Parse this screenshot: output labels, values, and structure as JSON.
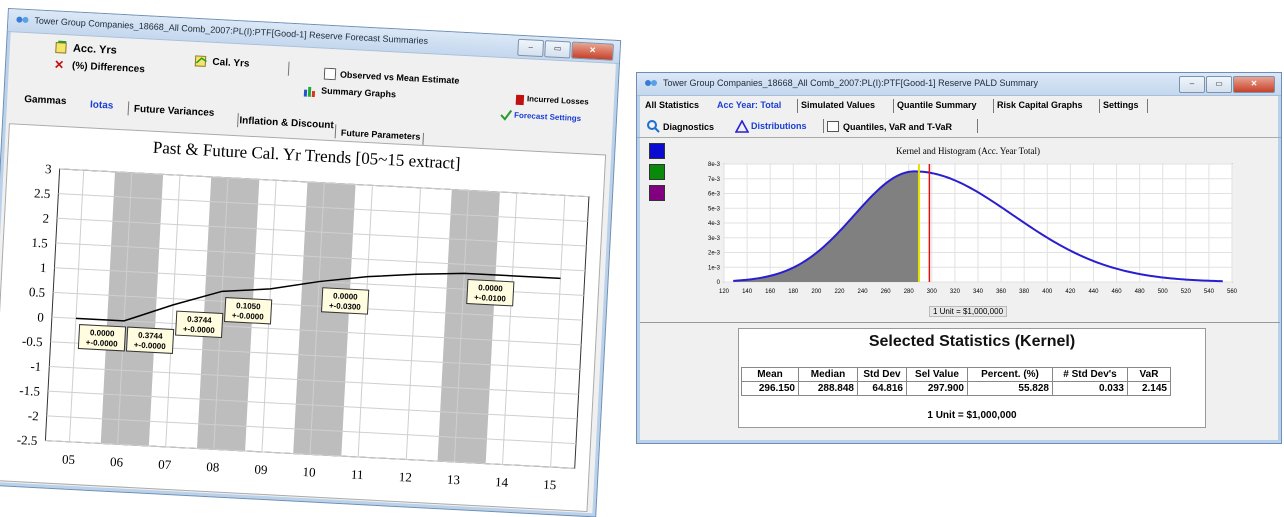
{
  "left_window": {
    "title": "Tower Group Companies_18668_All Comb_2007:PL(I):PTF[Good-1] Reserve Forecast Summaries",
    "toolbar": {
      "acc_yrs": "Acc. Yrs",
      "cal_yrs": "Cal. Yrs",
      "differences": "(%) Differences",
      "observed_vs_mean": "Observed vs Mean Estimate",
      "summary_graphs": "Summary Graphs",
      "incurred_losses": "Incurred Losses",
      "forecast_settings": "Forecast Settings"
    },
    "tabs": [
      "Gammas",
      "Iotas",
      "Future Variances",
      "Inflation & Discount",
      "Future Parameters"
    ]
  },
  "chart_data": [
    {
      "type": "line",
      "title": "Past & Future Cal. Yr Trends [05~15 extract]",
      "categories": [
        "05",
        "06",
        "07",
        "08",
        "09",
        "10",
        "11",
        "12",
        "13",
        "14",
        "15"
      ],
      "series": [
        {
          "values": [
            0.0,
            0.0,
            0.3744,
            0.7,
            0.8,
            1.0,
            1.15,
            1.25,
            1.32,
            1.32,
            1.32
          ]
        }
      ],
      "yticks": [
        "3",
        "2.5",
        "2",
        "1.5",
        "1",
        "0.5",
        "0",
        "-0.5",
        "-1",
        "-1.5",
        "-2",
        "-2.5"
      ],
      "ylim": [
        -2.5,
        3
      ],
      "shaded_bands": [
        [
          "06",
          "07"
        ],
        [
          "08",
          "09"
        ],
        [
          "10",
          "11"
        ],
        [
          "13",
          "14"
        ]
      ],
      "annotations": [
        {
          "x": "05",
          "y": 0.0,
          "line1": "0.0000",
          "line2": "+-0.0000"
        },
        {
          "x": "06",
          "y": 0.0,
          "line1": "0.3744",
          "line2": "+-0.0000"
        },
        {
          "x": "07",
          "y": 0.3744,
          "line1": "0.3744",
          "line2": "+-0.0000"
        },
        {
          "x": "08",
          "y": 0.7,
          "line1": "0.1050",
          "line2": "+-0.0000"
        },
        {
          "x": "10",
          "y": 1.0,
          "line1": "0.0000",
          "line2": "+-0.0300"
        },
        {
          "x": "13",
          "y": 1.32,
          "line1": "0.0000",
          "line2": "+-0.0100"
        }
      ],
      "grid": true,
      "line_color": "#000000"
    },
    {
      "type": "area",
      "title": "Kernel and Histogram (Acc. Year Total)",
      "xlabel": "1 Unit = $1,000,000",
      "x_ticks": [
        "120",
        "140",
        "160",
        "180",
        "200",
        "220",
        "240",
        "260",
        "280",
        "300",
        "320",
        "340",
        "360",
        "380",
        "400",
        "420",
        "440",
        "460",
        "480",
        "500",
        "520",
        "540",
        "560"
      ],
      "y_ticks": [
        "8e-3",
        "7e-3",
        "6e-3",
        "5e-3",
        "4e-3",
        "3e-3",
        "2e-3",
        "1e-3",
        "0"
      ],
      "xlim": [
        120,
        560
      ],
      "ylim": [
        0,
        0.008
      ],
      "kde": {
        "mean": 296.15,
        "sd": 64.816,
        "skew_right": true
      },
      "median_line": 288.848,
      "selected_value": 297.9,
      "colors": {
        "curve": "#2a1fd0",
        "fill": "#808080",
        "median": "#e2e200",
        "selected": "#e01010"
      },
      "grid": true
    }
  ],
  "right_window": {
    "title": "Tower Group Companies_18668_All Comb_2007:PL(I):PTF[Good-1] Reserve PALD Summary",
    "tabs": [
      "All Statistics",
      "Acc Year: Total",
      "Simulated Values",
      "Quantile Summary",
      "Risk Capital Graphs",
      "Settings"
    ],
    "subtabs": [
      "Diagnostics",
      "Distributions",
      "Quantiles, VaR and T-VaR"
    ],
    "swatches": [
      "#0a0ad0",
      "#0a8a0a",
      "#800080"
    ],
    "stats": {
      "heading": "Selected Statistics (Kernel)",
      "headers": [
        "Mean",
        "Median",
        "Std Dev",
        "Sel Value",
        "Percent. (%)",
        "# Std Dev's",
        "VaR"
      ],
      "values": [
        "296.150",
        "288.848",
        "64.816",
        "297.900",
        "55.828",
        "0.033",
        "2.145"
      ],
      "unit": "1 Unit = $1,000,000"
    }
  }
}
